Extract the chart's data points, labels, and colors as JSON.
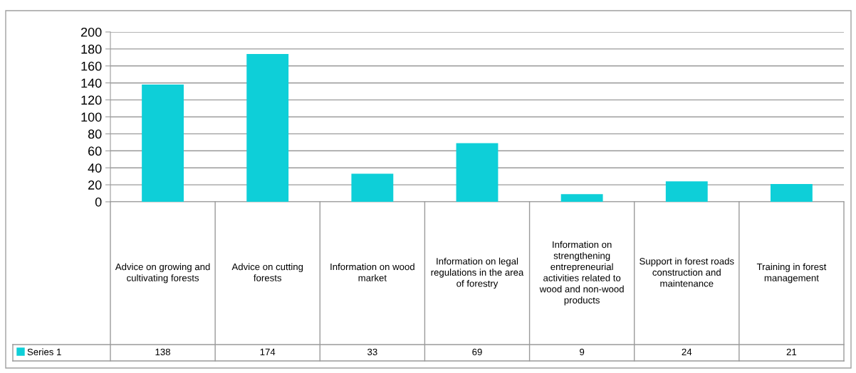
{
  "chart_data": {
    "type": "bar",
    "categories": [
      "Advice on growing and cultivating forests",
      "Advice on cutting forests",
      "Information on wood market",
      "Information on legal regulations in the area of forestry",
      "Information on strengthening entrepreneurial activities related to wood and non-wood products",
      "Support in forest roads construction and maintenance",
      "Training in forest management"
    ],
    "series": [
      {
        "name": "Series 1",
        "color": "#0ecfd8",
        "values": [
          138,
          174,
          33,
          69,
          9,
          24,
          21
        ]
      }
    ],
    "ylim": [
      0,
      200
    ],
    "yticks": [
      0,
      20,
      40,
      60,
      80,
      100,
      120,
      140,
      160,
      180,
      200
    ],
    "grid": "y",
    "legend": "bottom",
    "data_labels": true
  }
}
